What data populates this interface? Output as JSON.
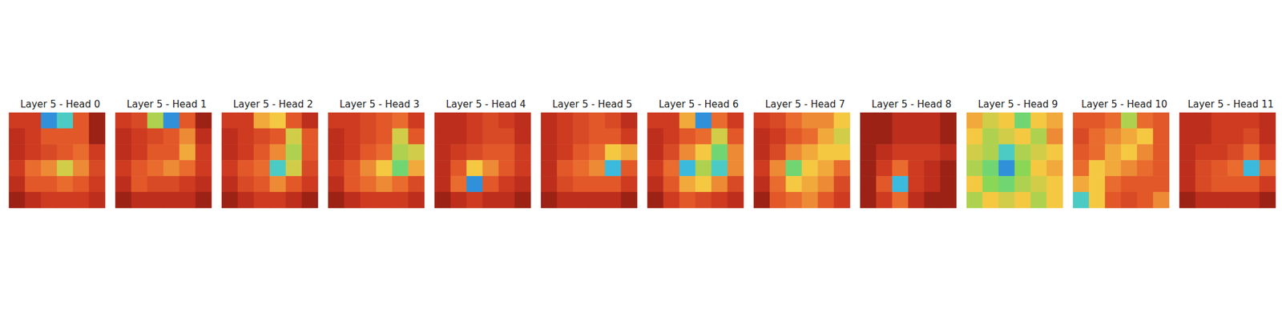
{
  "chart_data": [
    {
      "type": "heatmap",
      "title": "Layer 5 - Head 0",
      "tick_labels": false,
      "color_range": [
        0,
        1
      ],
      "cells": [
        [
          0.2,
          0.2,
          0.9,
          0.8,
          0.3,
          0.1
        ],
        [
          0.15,
          0.2,
          0.3,
          0.3,
          0.3,
          0.1
        ],
        [
          0.15,
          0.2,
          0.25,
          0.3,
          0.35,
          0.2
        ],
        [
          0.2,
          0.35,
          0.4,
          0.55,
          0.4,
          0.25
        ],
        [
          0.15,
          0.3,
          0.3,
          0.35,
          0.3,
          0.2
        ],
        [
          0.1,
          0.15,
          0.2,
          0.2,
          0.2,
          0.15
        ]
      ]
    },
    {
      "type": "heatmap",
      "title": "Layer 5 - Head 1",
      "tick_labels": false,
      "color_range": [
        0,
        1
      ],
      "cells": [
        [
          0.2,
          0.25,
          0.6,
          0.9,
          0.3,
          0.1
        ],
        [
          0.15,
          0.2,
          0.25,
          0.3,
          0.4,
          0.15
        ],
        [
          0.15,
          0.2,
          0.3,
          0.3,
          0.45,
          0.2
        ],
        [
          0.2,
          0.3,
          0.35,
          0.4,
          0.35,
          0.2
        ],
        [
          0.15,
          0.3,
          0.25,
          0.25,
          0.2,
          0.15
        ],
        [
          0.1,
          0.15,
          0.15,
          0.15,
          0.15,
          0.1
        ]
      ]
    },
    {
      "type": "heatmap",
      "title": "Layer 5 - Head 2",
      "tick_labels": false,
      "color_range": [
        0,
        1
      ],
      "cells": [
        [
          0.2,
          0.2,
          0.45,
          0.5,
          0.3,
          0.15
        ],
        [
          0.15,
          0.2,
          0.25,
          0.3,
          0.55,
          0.3
        ],
        [
          0.15,
          0.2,
          0.3,
          0.4,
          0.6,
          0.3
        ],
        [
          0.2,
          0.3,
          0.35,
          0.8,
          0.55,
          0.25
        ],
        [
          0.15,
          0.25,
          0.3,
          0.4,
          0.3,
          0.2
        ],
        [
          0.1,
          0.15,
          0.2,
          0.2,
          0.15,
          0.1
        ]
      ]
    },
    {
      "type": "heatmap",
      "title": "Layer 5 - Head 3",
      "tick_labels": false,
      "color_range": [
        0,
        1
      ],
      "cells": [
        [
          0.2,
          0.2,
          0.25,
          0.3,
          0.35,
          0.2
        ],
        [
          0.15,
          0.2,
          0.25,
          0.3,
          0.55,
          0.3
        ],
        [
          0.15,
          0.2,
          0.3,
          0.35,
          0.6,
          0.55
        ],
        [
          0.2,
          0.3,
          0.4,
          0.5,
          0.7,
          0.45
        ],
        [
          0.15,
          0.3,
          0.35,
          0.4,
          0.35,
          0.25
        ],
        [
          0.1,
          0.15,
          0.2,
          0.2,
          0.2,
          0.15
        ]
      ]
    },
    {
      "type": "heatmap",
      "title": "Layer 5 - Head 4",
      "tick_labels": false,
      "color_range": [
        0,
        1
      ],
      "cells": [
        [
          0.15,
          0.15,
          0.2,
          0.25,
          0.2,
          0.15
        ],
        [
          0.15,
          0.15,
          0.2,
          0.25,
          0.25,
          0.15
        ],
        [
          0.15,
          0.2,
          0.25,
          0.3,
          0.3,
          0.2
        ],
        [
          0.15,
          0.3,
          0.5,
          0.4,
          0.3,
          0.2
        ],
        [
          0.15,
          0.35,
          0.9,
          0.3,
          0.2,
          0.15
        ],
        [
          0.1,
          0.15,
          0.2,
          0.15,
          0.15,
          0.1
        ]
      ]
    },
    {
      "type": "heatmap",
      "title": "Layer 5 - Head 5",
      "tick_labels": false,
      "color_range": [
        0,
        1
      ],
      "cells": [
        [
          0.15,
          0.2,
          0.25,
          0.3,
          0.25,
          0.15
        ],
        [
          0.15,
          0.2,
          0.25,
          0.3,
          0.3,
          0.2
        ],
        [
          0.15,
          0.2,
          0.3,
          0.35,
          0.5,
          0.45
        ],
        [
          0.15,
          0.3,
          0.35,
          0.4,
          0.85,
          0.3
        ],
        [
          0.15,
          0.25,
          0.3,
          0.3,
          0.3,
          0.2
        ],
        [
          0.1,
          0.15,
          0.15,
          0.15,
          0.15,
          0.1
        ]
      ]
    },
    {
      "type": "heatmap",
      "title": "Layer 5 - Head 6",
      "tick_labels": false,
      "color_range": [
        0,
        1
      ],
      "cells": [
        [
          0.2,
          0.2,
          0.45,
          0.9,
          0.35,
          0.2
        ],
        [
          0.15,
          0.2,
          0.3,
          0.35,
          0.55,
          0.3
        ],
        [
          0.15,
          0.25,
          0.4,
          0.5,
          0.7,
          0.4
        ],
        [
          0.2,
          0.35,
          0.85,
          0.6,
          0.8,
          0.4
        ],
        [
          0.15,
          0.3,
          0.45,
          0.5,
          0.4,
          0.25
        ],
        [
          0.1,
          0.2,
          0.3,
          0.25,
          0.2,
          0.15
        ]
      ]
    },
    {
      "type": "heatmap",
      "title": "Layer 5 - Head 7",
      "tick_labels": false,
      "color_range": [
        0,
        1
      ],
      "cells": [
        [
          0.2,
          0.25,
          0.35,
          0.4,
          0.4,
          0.5
        ],
        [
          0.15,
          0.2,
          0.3,
          0.35,
          0.45,
          0.55
        ],
        [
          0.15,
          0.25,
          0.4,
          0.45,
          0.5,
          0.5
        ],
        [
          0.2,
          0.4,
          0.7,
          0.5,
          0.45,
          0.35
        ],
        [
          0.15,
          0.35,
          0.5,
          0.45,
          0.4,
          0.25
        ],
        [
          0.1,
          0.3,
          0.35,
          0.4,
          0.3,
          0.2
        ]
      ]
    },
    {
      "type": "heatmap",
      "title": "Layer 5 - Head 8",
      "tick_labels": false,
      "color_range": [
        0,
        1
      ],
      "cells": [
        [
          0.1,
          0.1,
          0.15,
          0.15,
          0.15,
          0.1
        ],
        [
          0.1,
          0.1,
          0.15,
          0.15,
          0.15,
          0.1
        ],
        [
          0.1,
          0.15,
          0.2,
          0.2,
          0.2,
          0.15
        ],
        [
          0.1,
          0.2,
          0.35,
          0.2,
          0.15,
          0.1
        ],
        [
          0.1,
          0.3,
          0.85,
          0.2,
          0.15,
          0.1
        ],
        [
          0.1,
          0.2,
          0.35,
          0.15,
          0.1,
          0.1
        ]
      ]
    },
    {
      "type": "heatmap",
      "title": "Layer 5 - Head 9",
      "tick_labels": false,
      "color_range": [
        0,
        1
      ],
      "cells": [
        [
          0.45,
          0.55,
          0.5,
          0.7,
          0.5,
          0.45
        ],
        [
          0.5,
          0.6,
          0.55,
          0.5,
          0.6,
          0.4
        ],
        [
          0.55,
          0.6,
          0.8,
          0.6,
          0.55,
          0.5
        ],
        [
          0.6,
          0.7,
          0.9,
          0.65,
          0.5,
          0.45
        ],
        [
          0.5,
          0.65,
          0.7,
          0.6,
          0.55,
          0.5
        ],
        [
          0.6,
          0.5,
          0.55,
          0.5,
          0.6,
          0.5
        ]
      ]
    },
    {
      "type": "heatmap",
      "title": "Layer 5 - Head 10",
      "tick_labels": false,
      "color_range": [
        0,
        1
      ],
      "cells": [
        [
          0.3,
          0.3,
          0.35,
          0.6,
          0.35,
          0.3
        ],
        [
          0.25,
          0.35,
          0.4,
          0.45,
          0.5,
          0.3
        ],
        [
          0.3,
          0.35,
          0.45,
          0.5,
          0.4,
          0.3
        ],
        [
          0.35,
          0.5,
          0.45,
          0.4,
          0.35,
          0.3
        ],
        [
          0.45,
          0.5,
          0.35,
          0.3,
          0.3,
          0.3
        ],
        [
          0.8,
          0.5,
          0.3,
          0.25,
          0.3,
          0.4
        ]
      ]
    },
    {
      "type": "heatmap",
      "title": "Layer 5 - Head 11",
      "tick_labels": false,
      "color_range": [
        0,
        1
      ],
      "cells": [
        [
          0.15,
          0.15,
          0.2,
          0.2,
          0.2,
          0.15
        ],
        [
          0.15,
          0.15,
          0.2,
          0.2,
          0.25,
          0.15
        ],
        [
          0.15,
          0.2,
          0.2,
          0.25,
          0.35,
          0.2
        ],
        [
          0.15,
          0.25,
          0.3,
          0.35,
          0.85,
          0.35
        ],
        [
          0.15,
          0.25,
          0.3,
          0.3,
          0.3,
          0.2
        ],
        [
          0.1,
          0.15,
          0.15,
          0.15,
          0.15,
          0.1
        ]
      ]
    }
  ]
}
